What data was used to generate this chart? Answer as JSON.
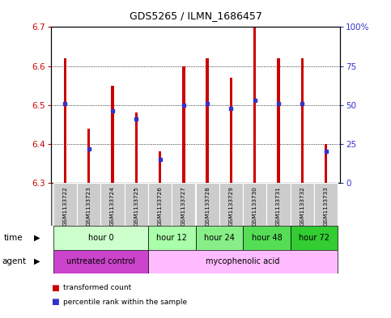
{
  "title": "GDS5265 / ILMN_1686457",
  "samples": [
    "GSM1133722",
    "GSM1133723",
    "GSM1133724",
    "GSM1133725",
    "GSM1133726",
    "GSM1133727",
    "GSM1133728",
    "GSM1133729",
    "GSM1133730",
    "GSM1133731",
    "GSM1133732",
    "GSM1133733"
  ],
  "transformed_counts": [
    6.62,
    6.44,
    6.55,
    6.48,
    6.38,
    6.6,
    6.62,
    6.57,
    6.7,
    6.62,
    6.62,
    6.4
  ],
  "percentile_ranks": [
    51,
    22,
    46,
    41,
    15,
    50,
    51,
    48,
    53,
    51,
    51,
    20
  ],
  "ylim_left": [
    6.3,
    6.7
  ],
  "ylim_right": [
    0,
    100
  ],
  "yticks_left": [
    6.3,
    6.4,
    6.5,
    6.6,
    6.7
  ],
  "yticks_right": [
    0,
    25,
    50,
    75,
    100
  ],
  "ytick_labels_right": [
    "0",
    "25",
    "50",
    "75",
    "100%"
  ],
  "bar_color": "#cc0000",
  "marker_color": "#3333cc",
  "bar_bottom": 6.3,
  "bar_width": 0.12,
  "time_groups": [
    {
      "label": "hour 0",
      "start": 0,
      "end": 4,
      "color": "#ccffcc"
    },
    {
      "label": "hour 12",
      "start": 4,
      "end": 6,
      "color": "#aaffaa"
    },
    {
      "label": "hour 24",
      "start": 6,
      "end": 8,
      "color": "#88ee88"
    },
    {
      "label": "hour 48",
      "start": 8,
      "end": 10,
      "color": "#55dd55"
    },
    {
      "label": "hour 72",
      "start": 10,
      "end": 12,
      "color": "#33cc33"
    }
  ],
  "agent_groups": [
    {
      "label": "untreated control",
      "start": 0,
      "end": 4,
      "color": "#cc44cc"
    },
    {
      "label": "mycophenolic acid",
      "start": 4,
      "end": 12,
      "color": "#ffbbff"
    }
  ],
  "legend_items": [
    {
      "label": "transformed count",
      "color": "#cc0000"
    },
    {
      "label": "percentile rank within the sample",
      "color": "#3333cc"
    }
  ],
  "background_color": "#ffffff",
  "plot_bg": "#ffffff",
  "axis_color_left": "#cc0000",
  "axis_color_right": "#3333cc",
  "grid_color": "#000000",
  "sample_bg": "#cccccc",
  "cell_edge": "#ffffff"
}
